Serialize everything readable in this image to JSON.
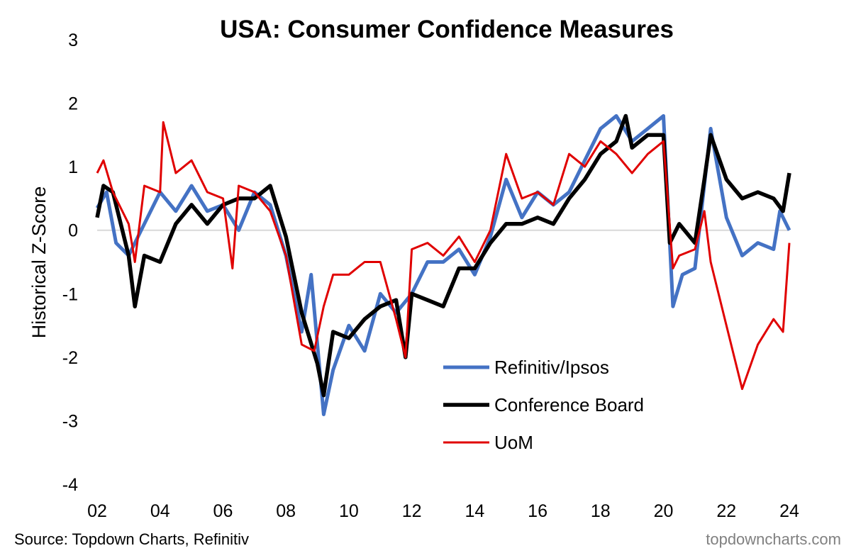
{
  "chart_data": {
    "type": "line",
    "title": "USA: Consumer Confidence Measures",
    "xlabel": "",
    "ylabel": "Historical Z-Score",
    "xlim": [
      2002,
      2024
    ],
    "ylim": [
      -4,
      3
    ],
    "x_ticks": [
      "02",
      "04",
      "06",
      "08",
      "10",
      "12",
      "14",
      "16",
      "18",
      "20",
      "22",
      "24"
    ],
    "y_ticks": [
      "3",
      "2",
      "1",
      "0",
      "-1",
      "-2",
      "-3",
      "-4"
    ],
    "grid": false,
    "zero_line": true,
    "legend_position": "bottom-center",
    "series": [
      {
        "name": "Refinitiv/Ipsos",
        "color": "#4472C4",
        "points": [
          [
            2002,
            0.35
          ],
          [
            2002.3,
            0.6
          ],
          [
            2002.6,
            -0.2
          ],
          [
            2003,
            -0.4
          ],
          [
            2003.5,
            0.1
          ],
          [
            2004,
            0.6
          ],
          [
            2004.5,
            0.3
          ],
          [
            2005,
            0.7
          ],
          [
            2005.5,
            0.3
          ],
          [
            2006,
            0.4
          ],
          [
            2006.5,
            0.0
          ],
          [
            2007,
            0.6
          ],
          [
            2007.5,
            0.4
          ],
          [
            2008,
            -0.4
          ],
          [
            2008.5,
            -1.6
          ],
          [
            2008.8,
            -0.7
          ],
          [
            2009.2,
            -2.9
          ],
          [
            2009.5,
            -2.2
          ],
          [
            2010,
            -1.5
          ],
          [
            2010.5,
            -1.9
          ],
          [
            2011,
            -1.0
          ],
          [
            2011.5,
            -1.3
          ],
          [
            2012,
            -1.0
          ],
          [
            2012.5,
            -0.5
          ],
          [
            2013,
            -0.5
          ],
          [
            2013.5,
            -0.3
          ],
          [
            2014,
            -0.7
          ],
          [
            2014.5,
            -0.1
          ],
          [
            2015,
            0.8
          ],
          [
            2015.5,
            0.2
          ],
          [
            2016,
            0.6
          ],
          [
            2016.5,
            0.4
          ],
          [
            2017,
            0.6
          ],
          [
            2017.5,
            1.1
          ],
          [
            2018,
            1.6
          ],
          [
            2018.5,
            1.8
          ],
          [
            2019,
            1.4
          ],
          [
            2019.5,
            1.6
          ],
          [
            2020,
            1.8
          ],
          [
            2020.3,
            -1.2
          ],
          [
            2020.6,
            -0.7
          ],
          [
            2021,
            -0.6
          ],
          [
            2021.5,
            1.6
          ],
          [
            2022,
            0.2
          ],
          [
            2022.5,
            -0.4
          ],
          [
            2023,
            -0.2
          ],
          [
            2023.5,
            -0.3
          ],
          [
            2023.7,
            0.3
          ],
          [
            2024,
            0.0
          ]
        ]
      },
      {
        "name": "Conference Board",
        "color": "#000000",
        "points": [
          [
            2002,
            0.2
          ],
          [
            2002.2,
            0.7
          ],
          [
            2002.5,
            0.6
          ],
          [
            2003,
            -0.4
          ],
          [
            2003.2,
            -1.2
          ],
          [
            2003.5,
            -0.4
          ],
          [
            2004,
            -0.5
          ],
          [
            2004.5,
            0.1
          ],
          [
            2005,
            0.4
          ],
          [
            2005.5,
            0.1
          ],
          [
            2006,
            0.4
          ],
          [
            2006.5,
            0.5
          ],
          [
            2007,
            0.5
          ],
          [
            2007.5,
            0.7
          ],
          [
            2008,
            -0.1
          ],
          [
            2008.5,
            -1.3
          ],
          [
            2009,
            -2.1
          ],
          [
            2009.2,
            -2.6
          ],
          [
            2009.5,
            -1.6
          ],
          [
            2010,
            -1.7
          ],
          [
            2010.5,
            -1.4
          ],
          [
            2011,
            -1.2
          ],
          [
            2011.5,
            -1.1
          ],
          [
            2011.8,
            -2.0
          ],
          [
            2012,
            -1.0
          ],
          [
            2012.5,
            -1.1
          ],
          [
            2013,
            -1.2
          ],
          [
            2013.5,
            -0.6
          ],
          [
            2014,
            -0.6
          ],
          [
            2014.5,
            -0.2
          ],
          [
            2015,
            0.1
          ],
          [
            2015.5,
            0.1
          ],
          [
            2016,
            0.2
          ],
          [
            2016.5,
            0.1
          ],
          [
            2017,
            0.5
          ],
          [
            2017.5,
            0.8
          ],
          [
            2018,
            1.2
          ],
          [
            2018.5,
            1.4
          ],
          [
            2018.8,
            1.8
          ],
          [
            2019,
            1.3
          ],
          [
            2019.5,
            1.5
          ],
          [
            2020,
            1.5
          ],
          [
            2020.2,
            -0.2
          ],
          [
            2020.5,
            0.1
          ],
          [
            2021,
            -0.2
          ],
          [
            2021.3,
            0.8
          ],
          [
            2021.5,
            1.5
          ],
          [
            2022,
            0.8
          ],
          [
            2022.5,
            0.5
          ],
          [
            2023,
            0.6
          ],
          [
            2023.5,
            0.5
          ],
          [
            2023.8,
            0.3
          ],
          [
            2024,
            0.9
          ]
        ]
      },
      {
        "name": "UoM",
        "color": "#E00000",
        "points": [
          [
            2002,
            0.9
          ],
          [
            2002.2,
            1.1
          ],
          [
            2002.5,
            0.6
          ],
          [
            2003,
            0.1
          ],
          [
            2003.2,
            -0.5
          ],
          [
            2003.5,
            0.7
          ],
          [
            2004,
            0.6
          ],
          [
            2004.1,
            1.7
          ],
          [
            2004.5,
            0.9
          ],
          [
            2005,
            1.1
          ],
          [
            2005.5,
            0.6
          ],
          [
            2006,
            0.5
          ],
          [
            2006.3,
            -0.6
          ],
          [
            2006.5,
            0.7
          ],
          [
            2007,
            0.6
          ],
          [
            2007.5,
            0.3
          ],
          [
            2008,
            -0.4
          ],
          [
            2008.5,
            -1.8
          ],
          [
            2008.9,
            -1.9
          ],
          [
            2009.2,
            -1.2
          ],
          [
            2009.5,
            -0.7
          ],
          [
            2010,
            -0.7
          ],
          [
            2010.5,
            -0.5
          ],
          [
            2011,
            -0.5
          ],
          [
            2011.5,
            -1.4
          ],
          [
            2011.8,
            -2.0
          ],
          [
            2012,
            -0.3
          ],
          [
            2012.5,
            -0.2
          ],
          [
            2013,
            -0.4
          ],
          [
            2013.5,
            -0.1
          ],
          [
            2014,
            -0.5
          ],
          [
            2014.5,
            0.0
          ],
          [
            2015,
            1.2
          ],
          [
            2015.5,
            0.5
          ],
          [
            2016,
            0.6
          ],
          [
            2016.5,
            0.4
          ],
          [
            2017,
            1.2
          ],
          [
            2017.5,
            1.0
          ],
          [
            2018,
            1.4
          ],
          [
            2018.5,
            1.2
          ],
          [
            2019,
            0.9
          ],
          [
            2019.5,
            1.2
          ],
          [
            2020,
            1.4
          ],
          [
            2020.3,
            -0.6
          ],
          [
            2020.5,
            -0.4
          ],
          [
            2021,
            -0.3
          ],
          [
            2021.3,
            0.3
          ],
          [
            2021.5,
            -0.5
          ],
          [
            2022,
            -1.5
          ],
          [
            2022.5,
            -2.5
          ],
          [
            2023,
            -1.8
          ],
          [
            2023.5,
            -1.4
          ],
          [
            2023.8,
            -1.6
          ],
          [
            2024,
            -0.2
          ]
        ]
      }
    ]
  },
  "footer": {
    "source": "Source: Topdown Charts, Refinitiv",
    "website": "topdowncharts.com"
  }
}
